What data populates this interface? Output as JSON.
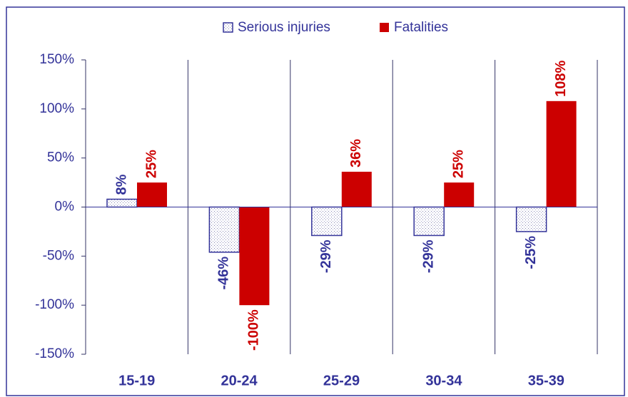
{
  "chart_data": {
    "type": "bar",
    "categories": [
      "15-19",
      "20-24",
      "25-29",
      "30-34",
      "35-39"
    ],
    "series": [
      {
        "name": "Serious injuries",
        "color": "#333399",
        "values": [
          8,
          -46,
          -29,
          -29,
          -25
        ],
        "value_labels": [
          "8%",
          "-46%",
          "-29%",
          "-29%",
          "-25%"
        ]
      },
      {
        "name": "Fatalities",
        "color": "#cc0000",
        "values": [
          25,
          -100,
          36,
          25,
          108
        ],
        "value_labels": [
          "25%",
          "-100%",
          "36%",
          "25%",
          "108%"
        ]
      }
    ],
    "ylim": [
      -150,
      150
    ],
    "yticks": [
      {
        "value": -150,
        "label": "-150%"
      },
      {
        "value": -100,
        "label": "-100%"
      },
      {
        "value": -50,
        "label": "-50%"
      },
      {
        "value": 0,
        "label": "0%"
      },
      {
        "value": 50,
        "label": "50%"
      },
      {
        "value": 100,
        "label": "100%"
      },
      {
        "value": 150,
        "label": "150%"
      }
    ],
    "legend": "top"
  }
}
